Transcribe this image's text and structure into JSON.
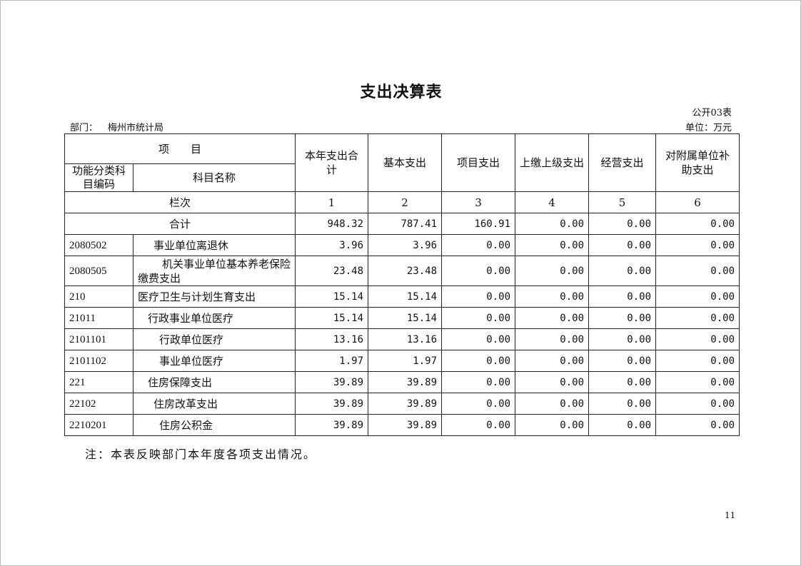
{
  "title": "支出决算表",
  "form_no": "公开03表",
  "department_label": "部门：",
  "department": "梅州市统计局",
  "unit": "单位：万元",
  "table": {
    "header": {
      "item": "项　　目",
      "code": "功能分类科目编码",
      "name": "科目名称",
      "columns": [
        "本年支出合计",
        "基本支出",
        "项目支出",
        "上缴上级支出",
        "经营支出",
        "对附属单位补助支出"
      ]
    },
    "column_index_label": "栏次",
    "column_indices": [
      "1",
      "2",
      "3",
      "4",
      "5",
      "6"
    ],
    "total": {
      "label": "合计",
      "values": [
        "948.32",
        "787.41",
        "160.91",
        "0.00",
        "0.00",
        "0.00"
      ]
    },
    "rows": [
      {
        "code": "2080502",
        "name": "事业单位离退休",
        "values": [
          "3.96",
          "3.96",
          "0.00",
          "0.00",
          "0.00",
          "0.00"
        ]
      },
      {
        "code": "2080505",
        "name": "机关事业单位基本养老保险缴费支出",
        "values": [
          "23.48",
          "23.48",
          "0.00",
          "0.00",
          "0.00",
          "0.00"
        ]
      },
      {
        "code": "210",
        "name": "医疗卫生与计划生育支出",
        "values": [
          "15.14",
          "15.14",
          "0.00",
          "0.00",
          "0.00",
          "0.00"
        ]
      },
      {
        "code": "21011",
        "name": "行政事业单位医疗",
        "values": [
          "15.14",
          "15.14",
          "0.00",
          "0.00",
          "0.00",
          "0.00"
        ]
      },
      {
        "code": "2101101",
        "name": "行政单位医疗",
        "values": [
          "13.16",
          "13.16",
          "0.00",
          "0.00",
          "0.00",
          "0.00"
        ]
      },
      {
        "code": "2101102",
        "name": "事业单位医疗",
        "values": [
          "1.97",
          "1.97",
          "0.00",
          "0.00",
          "0.00",
          "0.00"
        ]
      },
      {
        "code": "221",
        "name": "住房保障支出",
        "values": [
          "39.89",
          "39.89",
          "0.00",
          "0.00",
          "0.00",
          "0.00"
        ]
      },
      {
        "code": "22102",
        "name": "住房改革支出",
        "values": [
          "39.89",
          "39.89",
          "0.00",
          "0.00",
          "0.00",
          "0.00"
        ]
      },
      {
        "code": "2210201",
        "name": "住房公积金",
        "values": [
          "39.89",
          "39.89",
          "0.00",
          "0.00",
          "0.00",
          "0.00"
        ]
      }
    ]
  },
  "note": "注：本表反映部门本年度各项支出情况。",
  "page_number": "11"
}
